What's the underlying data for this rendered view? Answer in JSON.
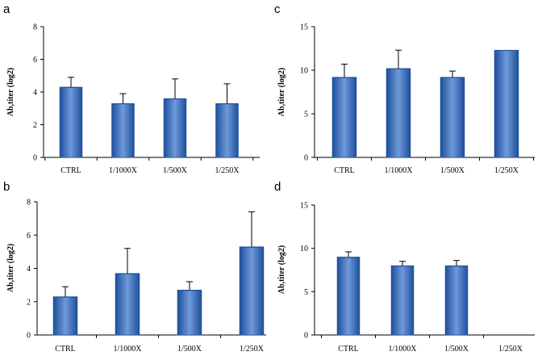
{
  "bar_colors": {
    "light": "#6f9ad8",
    "mid": "#3f73c5",
    "dark": "#1d4f9c"
  },
  "chart_data": [
    {
      "panel": "a",
      "type": "bar",
      "categories": [
        "CTRL",
        "1/1000X",
        "1/500X",
        "1/250X"
      ],
      "values": [
        4.3,
        3.3,
        3.6,
        3.3
      ],
      "errors": [
        0.6,
        0.6,
        1.2,
        1.2
      ],
      "ylabel": "Ab,titer (log2)",
      "ylim": [
        0,
        8
      ],
      "yticks": [
        0,
        2,
        4,
        6,
        8
      ]
    },
    {
      "panel": "c",
      "type": "bar",
      "categories": [
        "CTRL",
        "1/1000X",
        "1/500X",
        "1/250X"
      ],
      "values": [
        9.2,
        10.2,
        9.2,
        12.3
      ],
      "errors": [
        1.5,
        2.1,
        0.7,
        0
      ],
      "ylabel": "Ab,titer (log2)",
      "ylim": [
        0,
        15
      ],
      "yticks": [
        0,
        5,
        10,
        15
      ]
    },
    {
      "panel": "b",
      "type": "bar",
      "categories": [
        "CTRL",
        "1/1000X",
        "1/500X",
        "1/250X"
      ],
      "values": [
        2.3,
        3.7,
        2.7,
        5.3
      ],
      "errors": [
        0.6,
        1.5,
        0.5,
        2.1
      ],
      "ylabel": "Ab,titer (log2)",
      "ylim": [
        0,
        8
      ],
      "yticks": [
        0,
        2,
        4,
        6,
        8
      ]
    },
    {
      "panel": "d",
      "type": "bar",
      "categories": [
        "CTRL",
        "1/1000X",
        "1/500X",
        "1/250X"
      ],
      "values": [
        9.0,
        8.0,
        8.0,
        0
      ],
      "errors": [
        0.6,
        0.5,
        0.6,
        0
      ],
      "ylabel": "Ab,titer (log2)",
      "ylim": [
        0,
        15
      ],
      "yticks": [
        0,
        5,
        10,
        15
      ]
    }
  ]
}
